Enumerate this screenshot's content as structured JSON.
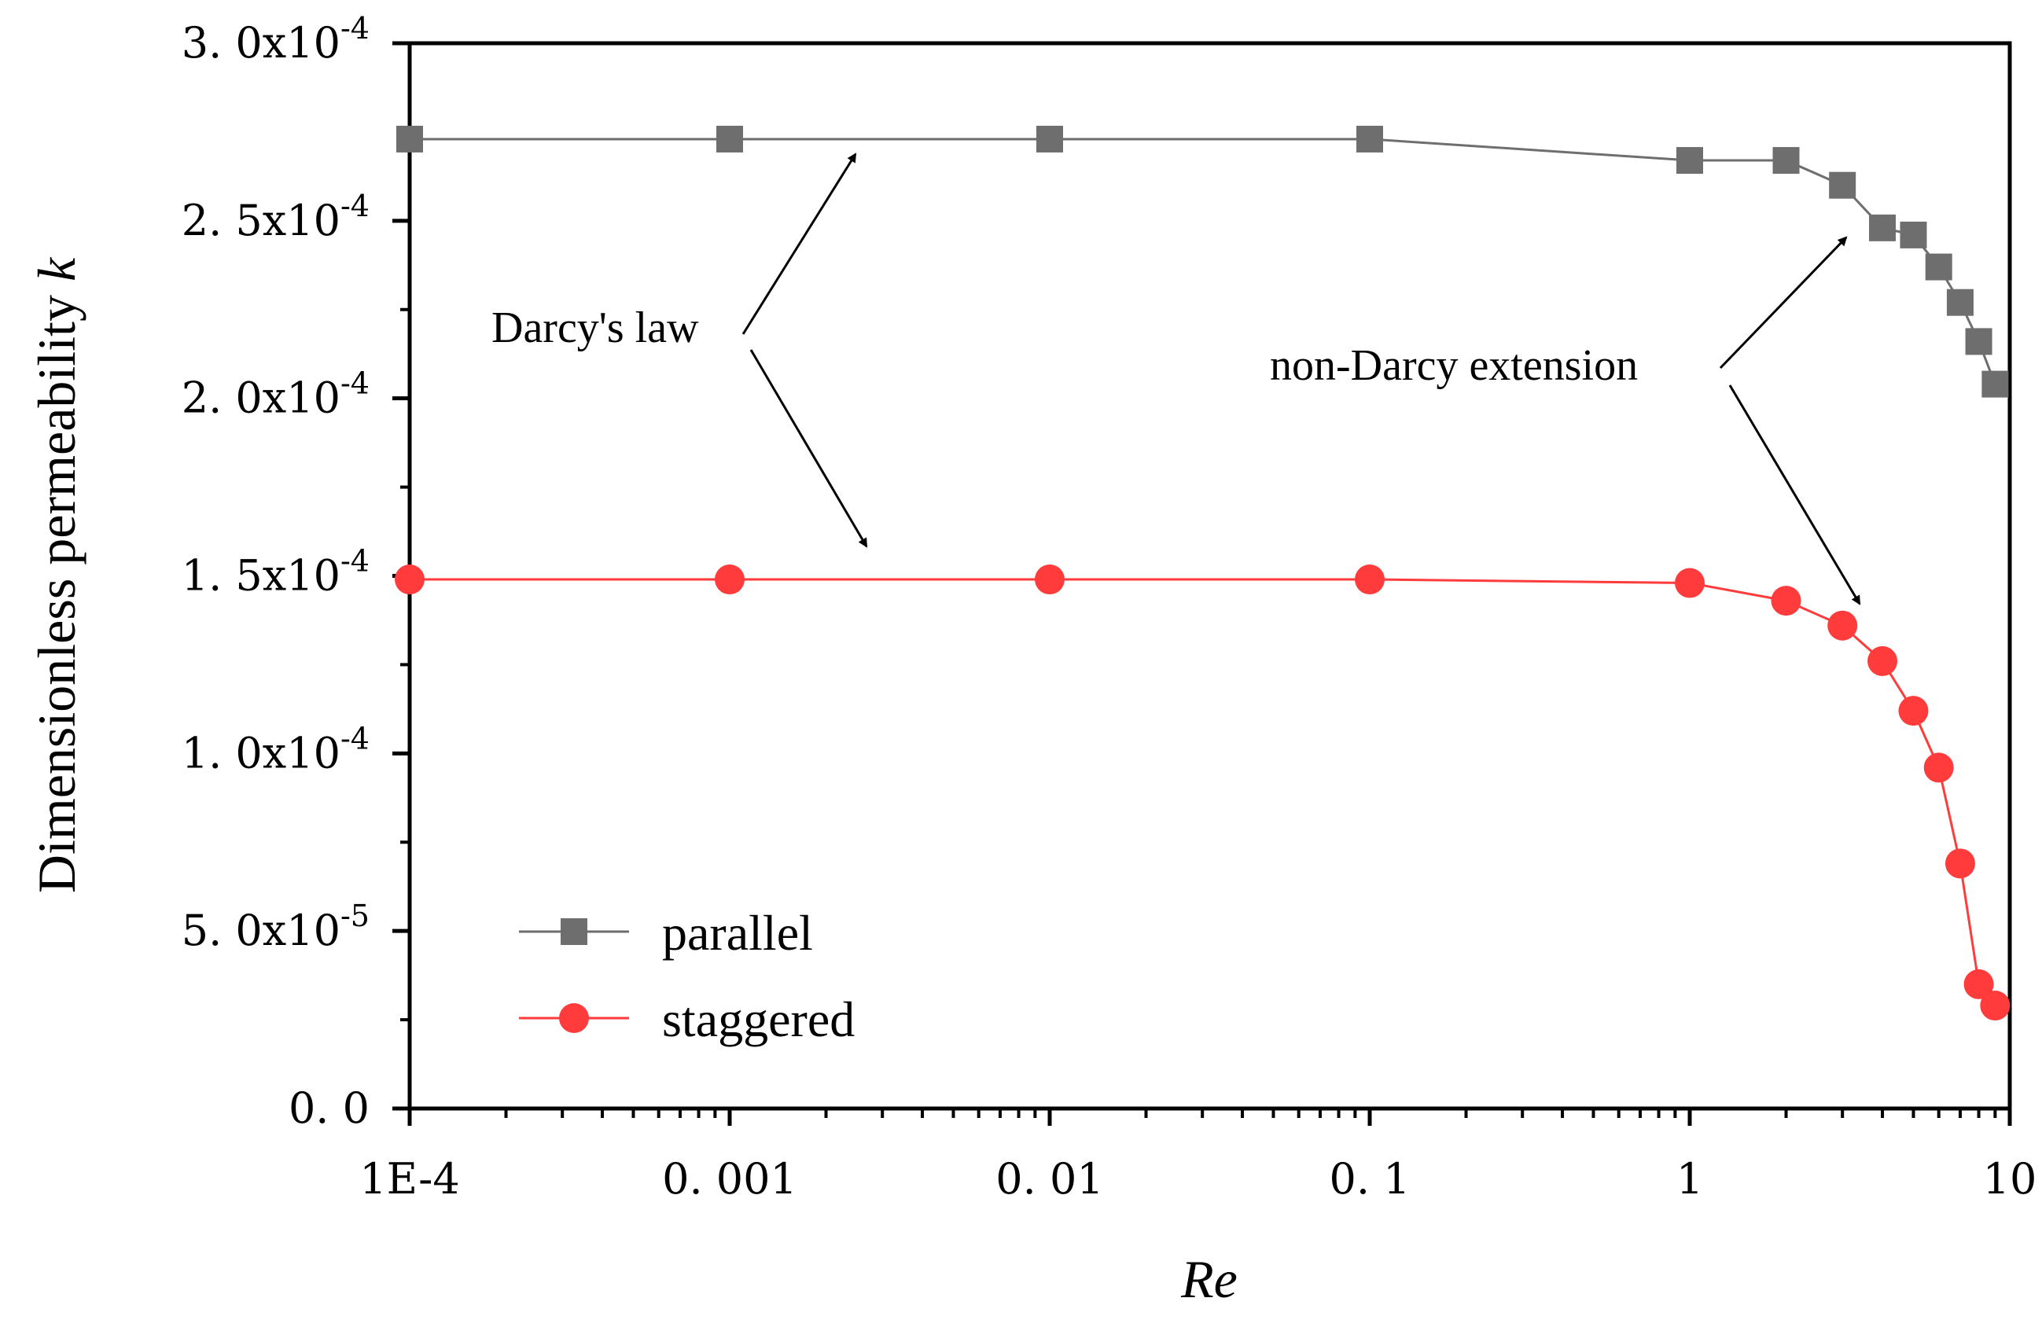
{
  "chart_data": {
    "type": "line",
    "title": "",
    "xlabel": "Re",
    "ylabel": "Dimensionless permeability ",
    "ylabel_symbol": "k",
    "xscale": "log",
    "xlim": [
      0.0001,
      10
    ],
    "ylim": [
      0,
      0.0003
    ],
    "grid": false,
    "xticks": [
      {
        "value": 0.0001,
        "label": "1E-4"
      },
      {
        "value": 0.001,
        "label": "0. 001"
      },
      {
        "value": 0.01,
        "label": "0. 01"
      },
      {
        "value": 0.1,
        "label": "0. 1"
      },
      {
        "value": 1,
        "label": "1"
      },
      {
        "value": 10,
        "label": "10"
      }
    ],
    "yticks": [
      {
        "value": 0,
        "mant": "0. 0",
        "exp": ""
      },
      {
        "value": 5e-05,
        "mant": "5. 0x10",
        "exp": "-5"
      },
      {
        "value": 0.0001,
        "mant": "1. 0x10",
        "exp": "-4"
      },
      {
        "value": 0.00015,
        "mant": "1. 5x10",
        "exp": "-4"
      },
      {
        "value": 0.0002,
        "mant": "2. 0x10",
        "exp": "-4"
      },
      {
        "value": 0.00025,
        "mant": "2. 5x10",
        "exp": "-4"
      },
      {
        "value": 0.0003,
        "mant": "3. 0x10",
        "exp": "-4"
      }
    ],
    "series": [
      {
        "name": "parallel",
        "color": "#6e6e6e",
        "marker": "square",
        "x": [
          0.0001,
          0.001,
          0.01,
          0.1,
          1,
          2,
          3,
          4,
          5,
          6,
          7,
          8,
          9
        ],
        "y": [
          0.000273,
          0.000273,
          0.000273,
          0.000273,
          0.000267,
          0.000267,
          0.00026,
          0.000248,
          0.000246,
          0.000237,
          0.000227,
          0.000216,
          0.000204
        ]
      },
      {
        "name": "staggered",
        "color": "#ff3b3b",
        "marker": "circle",
        "x": [
          0.0001,
          0.001,
          0.01,
          0.1,
          1,
          2,
          3,
          4,
          5,
          6,
          7,
          8,
          9
        ],
        "y": [
          0.000149,
          0.000149,
          0.000149,
          0.000149,
          0.000148,
          0.000143,
          0.000136,
          0.000126,
          0.000112,
          9.6e-05,
          6.9e-05,
          3.5e-05,
          2.9e-05
        ]
      }
    ],
    "legend": {
      "position": "bottom-left"
    },
    "annotations": [
      {
        "text": "Darcy's law"
      },
      {
        "text": "non-Darcy extension"
      }
    ]
  }
}
